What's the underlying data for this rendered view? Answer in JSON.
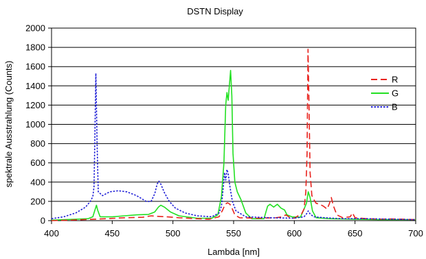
{
  "chart_data": {
    "type": "line",
    "title": "DSTN Display",
    "xlabel": "Lambda [nm]",
    "ylabel": "spektrale Ausstrahlung (Counts)",
    "xlim": [
      400,
      700
    ],
    "ylim": [
      0,
      2000
    ],
    "x_ticks": [
      400,
      450,
      500,
      550,
      600,
      650,
      700
    ],
    "y_ticks": [
      0,
      200,
      400,
      600,
      800,
      1000,
      1200,
      1400,
      1600,
      1800,
      2000
    ],
    "grid": "horizontal",
    "legend_position": "right",
    "series": [
      {
        "name": "R",
        "color": "#e8211c",
        "line_style": "long-dash",
        "points": [
          [
            400,
            0
          ],
          [
            415,
            5
          ],
          [
            430,
            12
          ],
          [
            445,
            20
          ],
          [
            460,
            30
          ],
          [
            475,
            35
          ],
          [
            482,
            50
          ],
          [
            487,
            45
          ],
          [
            495,
            40
          ],
          [
            505,
            30
          ],
          [
            520,
            20
          ],
          [
            530,
            15
          ],
          [
            538,
            40
          ],
          [
            541,
            110
          ],
          [
            543,
            170
          ],
          [
            545,
            185
          ],
          [
            547,
            170
          ],
          [
            549,
            120
          ],
          [
            551,
            60
          ],
          [
            555,
            30
          ],
          [
            570,
            25
          ],
          [
            585,
            30
          ],
          [
            590,
            40
          ],
          [
            593,
            60
          ],
          [
            596,
            35
          ],
          [
            600,
            25
          ],
          [
            603,
            50
          ],
          [
            606,
            70
          ],
          [
            608,
            120
          ],
          [
            609.5,
            300
          ],
          [
            610.5,
            700
          ],
          [
            611.3,
            1780
          ],
          [
            612,
            1300
          ],
          [
            613,
            500
          ],
          [
            614.5,
            260
          ],
          [
            616,
            220
          ],
          [
            618,
            180
          ],
          [
            621,
            170
          ],
          [
            624,
            150
          ],
          [
            627,
            120
          ],
          [
            629,
            180
          ],
          [
            630.5,
            240
          ],
          [
            632,
            160
          ],
          [
            635,
            60
          ],
          [
            640,
            30
          ],
          [
            646,
            40
          ],
          [
            648,
            80
          ],
          [
            650,
            30
          ],
          [
            660,
            20
          ],
          [
            670,
            15
          ],
          [
            680,
            18
          ],
          [
            690,
            15
          ],
          [
            700,
            10
          ]
        ]
      },
      {
        "name": "G",
        "color": "#22e022",
        "line_style": "solid",
        "points": [
          [
            400,
            5
          ],
          [
            420,
            15
          ],
          [
            430,
            20
          ],
          [
            434,
            40
          ],
          [
            436,
            120
          ],
          [
            437,
            160
          ],
          [
            438,
            110
          ],
          [
            440,
            40
          ],
          [
            450,
            40
          ],
          [
            460,
            50
          ],
          [
            470,
            60
          ],
          [
            480,
            65
          ],
          [
            485,
            90
          ],
          [
            488,
            140
          ],
          [
            490,
            160
          ],
          [
            493,
            140
          ],
          [
            498,
            90
          ],
          [
            505,
            50
          ],
          [
            520,
            25
          ],
          [
            532,
            25
          ],
          [
            537,
            60
          ],
          [
            540,
            250
          ],
          [
            542,
            600
          ],
          [
            543.5,
            1200
          ],
          [
            544.5,
            1330
          ],
          [
            545.5,
            1250
          ],
          [
            546.5,
            1400
          ],
          [
            547.5,
            1560
          ],
          [
            548.5,
            1300
          ],
          [
            549.5,
            700
          ],
          [
            551,
            400
          ],
          [
            553,
            300
          ],
          [
            556,
            220
          ],
          [
            560,
            80
          ],
          [
            565,
            20
          ],
          [
            575,
            20
          ],
          [
            578,
            150
          ],
          [
            580,
            170
          ],
          [
            583,
            140
          ],
          [
            586,
            170
          ],
          [
            589,
            130
          ],
          [
            592,
            110
          ],
          [
            594,
            60
          ],
          [
            598,
            40
          ],
          [
            605,
            35
          ],
          [
            608,
            120
          ],
          [
            610,
            180
          ],
          [
            611.5,
            300
          ],
          [
            613,
            240
          ],
          [
            615,
            100
          ],
          [
            618,
            30
          ],
          [
            630,
            20
          ],
          [
            650,
            15
          ],
          [
            670,
            10
          ],
          [
            700,
            10
          ]
        ]
      },
      {
        "name": "B",
        "color": "#1c1cd6",
        "line_style": "dotted",
        "points": [
          [
            400,
            20
          ],
          [
            410,
            40
          ],
          [
            420,
            80
          ],
          [
            428,
            140
          ],
          [
            432,
            200
          ],
          [
            434,
            250
          ],
          [
            435,
            350
          ],
          [
            435.5,
            700
          ],
          [
            436.5,
            1530
          ],
          [
            437.5,
            800
          ],
          [
            438.5,
            300
          ],
          [
            442,
            260
          ],
          [
            448,
            300
          ],
          [
            455,
            310
          ],
          [
            462,
            300
          ],
          [
            470,
            260
          ],
          [
            478,
            200
          ],
          [
            482,
            200
          ],
          [
            485,
            280
          ],
          [
            487,
            380
          ],
          [
            488.5,
            410
          ],
          [
            490,
            380
          ],
          [
            493,
            290
          ],
          [
            497,
            200
          ],
          [
            502,
            130
          ],
          [
            510,
            80
          ],
          [
            520,
            50
          ],
          [
            532,
            40
          ],
          [
            538,
            80
          ],
          [
            540,
            150
          ],
          [
            541.5,
            350
          ],
          [
            542.5,
            500
          ],
          [
            543.5,
            420
          ],
          [
            544.5,
            530
          ],
          [
            545.5,
            490
          ],
          [
            547,
            350
          ],
          [
            549,
            200
          ],
          [
            552,
            100
          ],
          [
            560,
            40
          ],
          [
            580,
            30
          ],
          [
            600,
            25
          ],
          [
            608,
            40
          ],
          [
            610,
            70
          ],
          [
            611.5,
            100
          ],
          [
            613,
            70
          ],
          [
            616,
            40
          ],
          [
            625,
            30
          ],
          [
            640,
            20
          ],
          [
            660,
            20
          ],
          [
            680,
            15
          ],
          [
            700,
            10
          ]
        ]
      }
    ]
  }
}
